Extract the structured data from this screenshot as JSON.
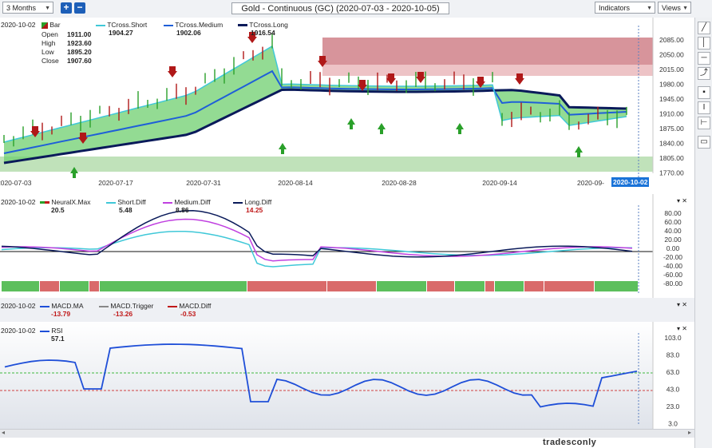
{
  "toolbar": {
    "period": "3 Months",
    "add_label": "+",
    "remove_label": "−",
    "title": "Gold - Continuous (GC) (2020-07-03 - 2020-10-05)",
    "indicators_label": "Indicators",
    "views_label": "Views"
  },
  "price_pane": {
    "date": "2020-10-02",
    "bar_label": "Bar",
    "open_label": "Open",
    "open": "1911.00",
    "high_label": "High",
    "high": "1923.60",
    "low_label": "Low",
    "low": "1895.20",
    "close_label": "Close",
    "close": "1907.60",
    "tcross_short_label": "TCross.Short",
    "tcross_short": "1904.27",
    "tcross_medium_label": "TCross.Medium",
    "tcross_medium": "1902.06",
    "tcross_long_label": "TCross.Long",
    "tcross_long": "1916.54",
    "y_ticks": [
      "2085.00",
      "2050.00",
      "2015.00",
      "1980.00",
      "1945.00",
      "1910.00",
      "1875.00",
      "1840.00",
      "1805.00",
      "1770.00"
    ],
    "x_ticks": [
      "2020-07-03",
      "2020-07-17",
      "2020-07-31",
      "2020-08-14",
      "2020-08-28",
      "2020-09-14",
      "2020-09-",
      "2020-10-02"
    ],
    "x_highlight": "2020-10-02"
  },
  "neural_pane": {
    "date": "2020-10-02",
    "neuralx_label": "NeuralX.Max",
    "neuralx": "20.5",
    "short_label": "Short.Diff",
    "short": "5.48",
    "medium_label": "Medium.Diff",
    "medium": "8.86",
    "long_label": "Long.Diff",
    "long": "14.25",
    "y_ticks": [
      "80.00",
      "60.00",
      "40.00",
      "20.00",
      "0.00",
      "-20.00",
      "-40.00",
      "-60.00",
      "-80.00"
    ]
  },
  "macd_pane": {
    "date": "2020-10-02",
    "ma_label": "MACD.MA",
    "ma": "-13.79",
    "trigger_label": "MACD.Trigger",
    "trigger": "-13.26",
    "diff_label": "MACD.Diff",
    "diff": "-0.53"
  },
  "rsi_pane": {
    "date": "2020-10-02",
    "rsi_label": "RSI",
    "rsi": "57.1",
    "y_ticks": [
      "103.0",
      "83.0",
      "63.0",
      "43.0",
      "23.0",
      "3.0"
    ]
  },
  "watermark": "tradesconly",
  "colors": {
    "short": "#40c8d8",
    "medium": "#1f5fd8",
    "long": "#0a1a5a",
    "bull_fill": "#6fcf6f",
    "bear_fill": "#d98a8a",
    "up_bar": "#2aa02a",
    "down_bar": "#b01818",
    "neural_pos": "#5cbf5c",
    "neural_neg": "#d96a6a",
    "diff_medium": "#c040e0",
    "rsi": "#1f4fd8"
  },
  "icons": [
    "pencil-icon",
    "vertical-line-icon",
    "horizontal-line-icon",
    "tool-icon",
    "square-icon",
    "text-icon",
    "ruler-icon",
    "callout-icon"
  ]
}
